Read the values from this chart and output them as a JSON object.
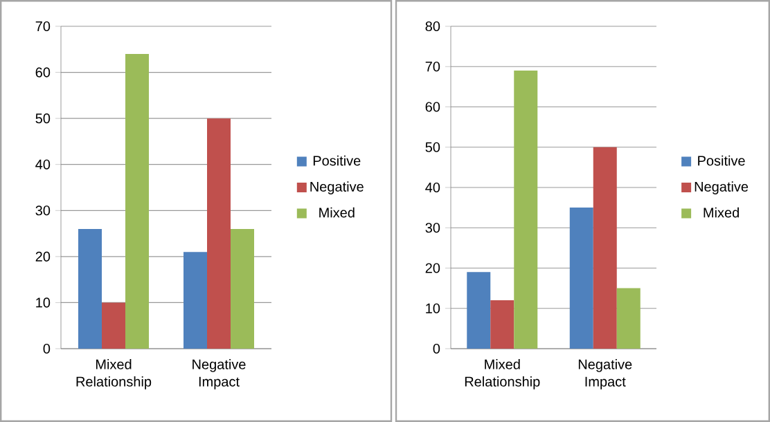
{
  "chart_data": [
    {
      "type": "bar",
      "categories": [
        "Mixed Relationship",
        "Negative Impact"
      ],
      "series": [
        {
          "name": "Positive",
          "color": "#4f81bd",
          "values": [
            26,
            21
          ]
        },
        {
          "name": "Negative",
          "color": "#c0504d",
          "values": [
            10,
            50
          ]
        },
        {
          "name": "Mixed",
          "color": "#9bbb59",
          "values": [
            64,
            26
          ]
        }
      ],
      "ylim": [
        0,
        70
      ],
      "yticks": [
        0,
        10,
        20,
        30,
        40,
        50,
        60,
        70
      ],
      "grid": "y",
      "legend": "right"
    },
    {
      "type": "bar",
      "categories": [
        "Mixed Relationship",
        "Negative Impact"
      ],
      "series": [
        {
          "name": "Positive",
          "color": "#4f81bd",
          "values": [
            19,
            35
          ]
        },
        {
          "name": "Negative",
          "color": "#c0504d",
          "values": [
            12,
            50
          ]
        },
        {
          "name": "Mixed",
          "color": "#9bbb59",
          "values": [
            69,
            15
          ]
        }
      ],
      "ylim": [
        0,
        80
      ],
      "yticks": [
        0,
        10,
        20,
        30,
        40,
        50,
        60,
        70,
        80
      ],
      "grid": "y",
      "legend": "right"
    }
  ]
}
